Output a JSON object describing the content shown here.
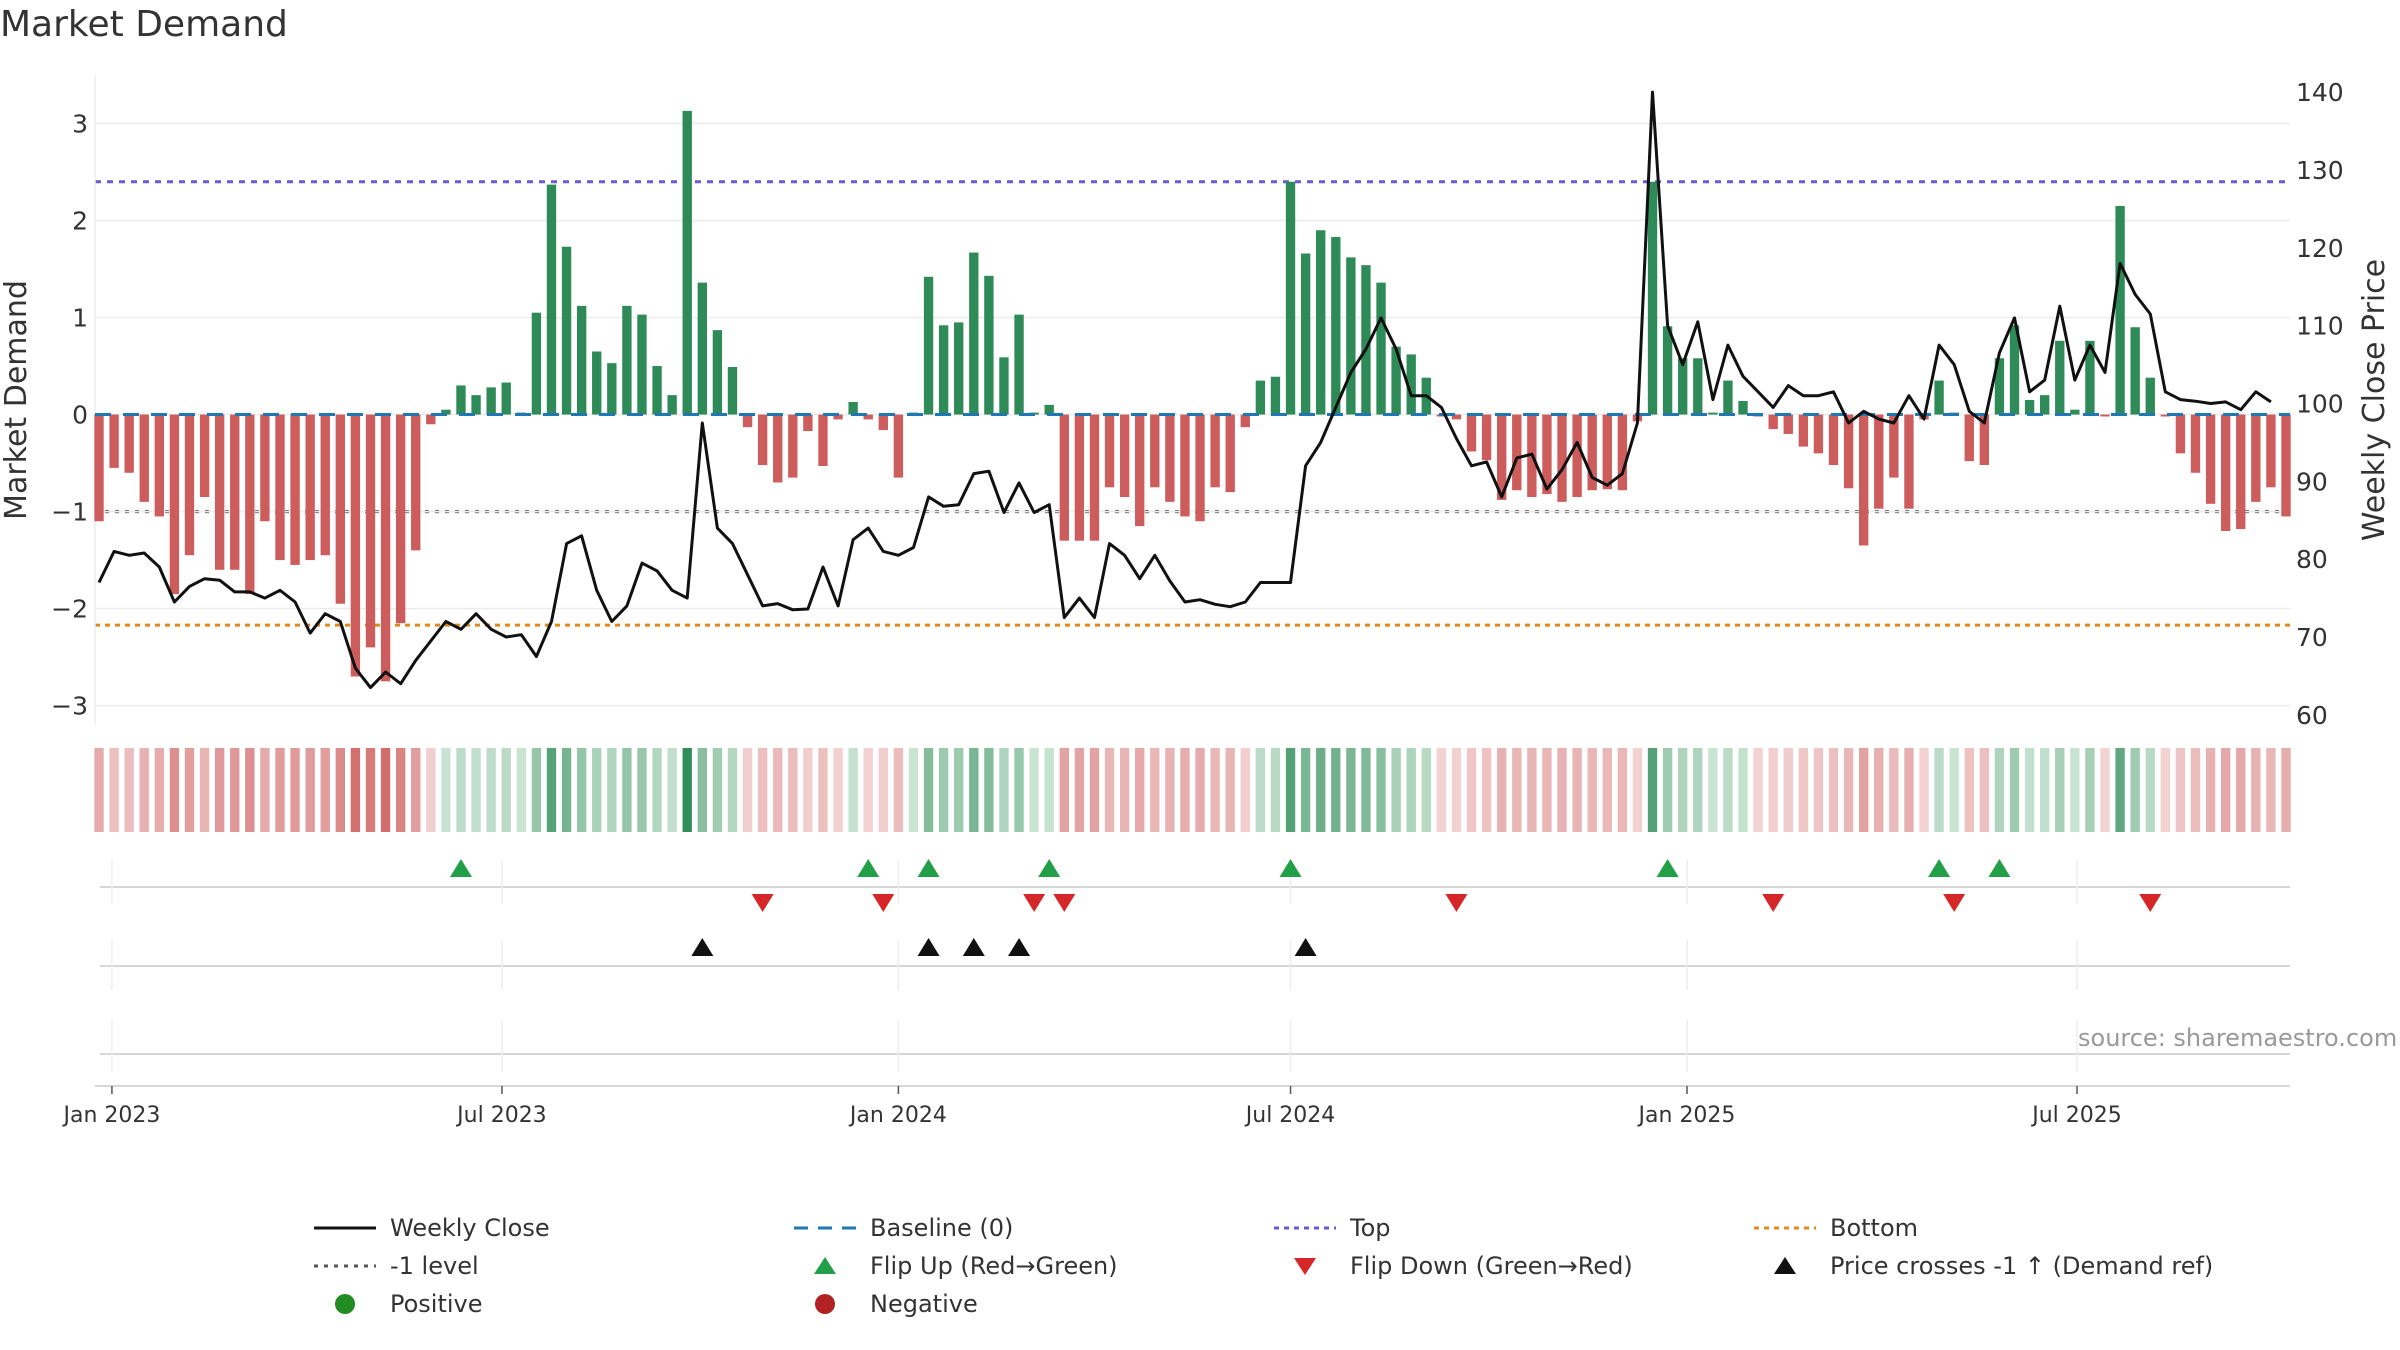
{
  "title": "Market Demand",
  "source": "source: sharemaestro.com",
  "colors": {
    "positive": "#2e8b57",
    "negative": "#cd5c5c",
    "price_line": "#111111",
    "baseline": "#1f77b4",
    "top": "#6a5acd",
    "neg_level": "#555555",
    "bottom": "#e08a1e",
    "flip_up": "#22a047",
    "flip_down": "#d62728",
    "cross": "#111111",
    "positive_dot": "#228b22",
    "negative_dot": "#b22222"
  },
  "chart_data": {
    "type": "bar",
    "x_start": "2022-12-26",
    "week_step_days": 7,
    "left_axis": {
      "label": "Market Demand",
      "ylim": [
        -3.2,
        3.5
      ],
      "ticks": [
        -3,
        -2,
        -1,
        0,
        1,
        2,
        3
      ],
      "tick_labels": [
        "−3",
        "−2",
        "−1",
        "0",
        "1",
        "2",
        "3"
      ]
    },
    "right_axis": {
      "label": "Weekly Close Price",
      "ylim": [
        58.7,
        142.2
      ],
      "ticks": [
        60,
        70,
        80,
        90,
        100,
        110,
        120,
        130,
        140
      ]
    },
    "x_ticks": [
      {
        "date": "2023-01-01",
        "label": "Jan 2023"
      },
      {
        "date": "2023-07-01",
        "label": "Jul 2023"
      },
      {
        "date": "2024-01-01",
        "label": "Jan 2024"
      },
      {
        "date": "2024-07-01",
        "label": "Jul 2024"
      },
      {
        "date": "2025-01-01",
        "label": "Jan 2025"
      },
      {
        "date": "2025-07-01",
        "label": "Jul 2025"
      }
    ],
    "levels": {
      "baseline": 0,
      "top": 2.4,
      "neg_level": -1,
      "bottom": -2.17
    },
    "series": [
      {
        "name": "Market Demand",
        "axis": "left",
        "type": "bar",
        "values": [
          -1.1,
          -0.55,
          -0.6,
          -0.9,
          -1.05,
          -1.85,
          -1.45,
          -0.85,
          -1.6,
          -1.6,
          -1.85,
          -1.1,
          -1.5,
          -1.55,
          -1.5,
          -1.45,
          -1.95,
          -2.7,
          -2.4,
          -2.75,
          -2.15,
          -1.4,
          -0.1,
          0.05,
          0.3,
          0.2,
          0.28,
          0.33,
          0.02,
          1.05,
          2.37,
          1.73,
          1.12,
          0.65,
          0.53,
          1.12,
          1.03,
          0.5,
          0.2,
          3.13,
          1.36,
          0.87,
          0.49,
          -0.13,
          -0.52,
          -0.7,
          -0.65,
          -0.17,
          -0.53,
          -0.05,
          0.13,
          -0.05,
          -0.16,
          -0.65,
          0.02,
          1.42,
          0.92,
          0.95,
          1.67,
          1.43,
          0.59,
          1.03,
          0.02,
          0.1,
          -1.3,
          -1.3,
          -1.3,
          -0.75,
          -0.85,
          -1.15,
          -0.75,
          -0.9,
          -1.05,
          -1.1,
          -0.75,
          -0.8,
          -0.13,
          0.35,
          0.39,
          2.4,
          1.66,
          1.9,
          1.83,
          1.62,
          1.54,
          1.36,
          0.7,
          0.62,
          0.38,
          -0.02,
          -0.05,
          -0.38,
          -0.47,
          -0.88,
          -0.78,
          -0.85,
          -0.82,
          -0.9,
          -0.85,
          -0.78,
          -0.77,
          -0.78,
          -0.07,
          2.4,
          0.91,
          0.58,
          0.58,
          0.02,
          0.35,
          0.14,
          -0.02,
          -0.15,
          -0.2,
          -0.33,
          -0.4,
          -0.52,
          -0.76,
          -1.35,
          -0.97,
          -0.65,
          -0.97,
          -0.05,
          0.35,
          0.02,
          -0.48,
          -0.52,
          0.58,
          0.92,
          0.15,
          0.2,
          0.76,
          0.05,
          0.76,
          -0.02,
          2.15,
          0.9,
          0.38,
          -0.02,
          -0.4,
          -0.6,
          -0.92,
          -1.2,
          -1.18,
          -0.9,
          -0.75,
          -1.05
        ]
      },
      {
        "name": "Weekly Close",
        "axis": "right",
        "type": "line",
        "values": [
          77,
          81,
          80.5,
          80.8,
          79,
          74.5,
          76.5,
          77.5,
          77.3,
          75.8,
          75.8,
          75,
          76,
          74.5,
          70.5,
          73,
          72,
          66,
          63.5,
          65.5,
          64,
          67,
          69.5,
          72,
          71,
          73,
          71,
          70,
          70.3,
          67.5,
          72,
          82,
          83,
          76,
          72,
          74,
          79.5,
          78.5,
          76,
          75,
          97.5,
          84,
          82,
          78,
          74,
          74.3,
          73.5,
          73.6,
          79,
          74,
          82.5,
          84,
          81,
          80.5,
          81.5,
          88,
          86.8,
          87,
          91,
          91.3,
          86,
          89.8,
          86,
          87,
          72.5,
          75,
          72.5,
          82,
          80.5,
          77.5,
          80.5,
          77.2,
          74.5,
          74.8,
          74.2,
          73.9,
          74.5,
          77,
          77,
          77,
          92,
          95,
          99.5,
          104,
          107,
          111,
          107,
          101,
          101,
          99.5,
          95.5,
          92,
          92.5,
          88,
          93,
          93.5,
          89,
          91.5,
          95,
          90.5,
          89.5,
          91,
          97.5,
          140,
          110,
          105,
          110.5,
          100.5,
          107.5,
          103.5,
          101.5,
          99.5,
          102.3,
          101,
          101,
          101.5,
          97.5,
          99,
          98,
          97.5,
          101,
          98,
          107.5,
          105,
          99,
          97.5,
          106.5,
          111,
          101.5,
          103,
          112.5,
          103,
          107.5,
          104,
          118,
          114,
          111.5,
          101.5,
          100.5,
          100.3,
          100,
          100.2,
          99.2,
          101.5,
          100.2
        ]
      }
    ],
    "flip_up_weeks": [
      24,
      51,
      55,
      63,
      79,
      104,
      122,
      126
    ],
    "flip_down_weeks": [
      44,
      52,
      62,
      64,
      90,
      111,
      123,
      136
    ],
    "price_cross_weeks": [
      40,
      55,
      58,
      61,
      80
    ],
    "legend": [
      "Weekly Close",
      "Baseline (0)",
      "Top",
      "Bottom",
      "-1 level",
      "Flip Up (Red→Green)",
      "Flip Down (Green→Red)",
      "Price crosses -1 ↑ (Demand ref)",
      "Positive",
      "Negative"
    ]
  }
}
